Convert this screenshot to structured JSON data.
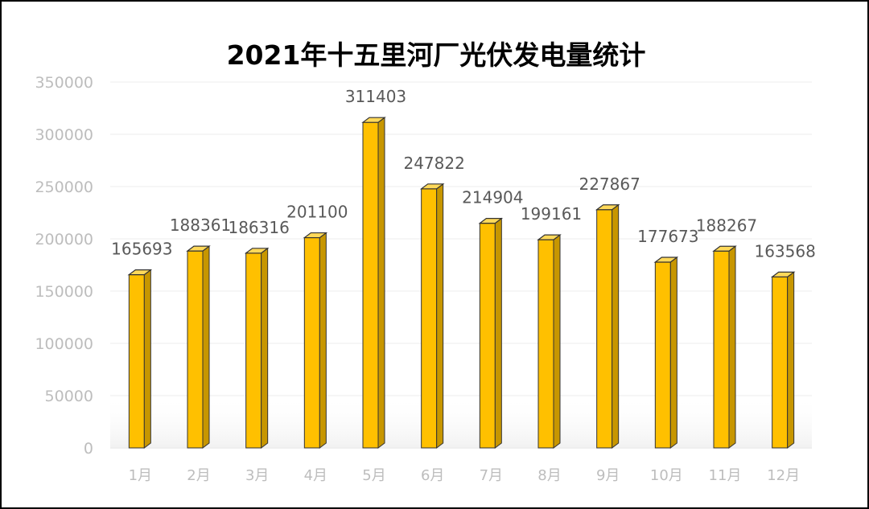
{
  "chart_data": {
    "type": "bar",
    "title": "2021年十五里河厂光伏发电量统计",
    "categories": [
      "1月",
      "2月",
      "3月",
      "4月",
      "5月",
      "6月",
      "7月",
      "8月",
      "9月",
      "10月",
      "11月",
      "12月"
    ],
    "values": [
      165693,
      188361,
      186316,
      201100,
      311403,
      247822,
      214904,
      199161,
      227867,
      177673,
      188267,
      163568
    ],
    "data_labels": [
      "165693",
      "188361",
      "186316",
      "201100",
      "311403",
      "247822",
      "214904",
      "199161",
      "227867",
      "177673",
      "188267",
      "163568"
    ],
    "yticks": [
      "0",
      "50000",
      "100000",
      "150000",
      "200000",
      "250000",
      "300000",
      "350000"
    ],
    "ylim": [
      0,
      350000
    ],
    "grid": true,
    "legend": "none",
    "bar_color": "#FFC000",
    "bar_color_light": "#FFD95A",
    "bar_color_dark": "#C79600",
    "outline_color": "#333333",
    "grid_color": "#ececec",
    "tick_color": "#bdbdbd",
    "label_color": "#595959"
  }
}
